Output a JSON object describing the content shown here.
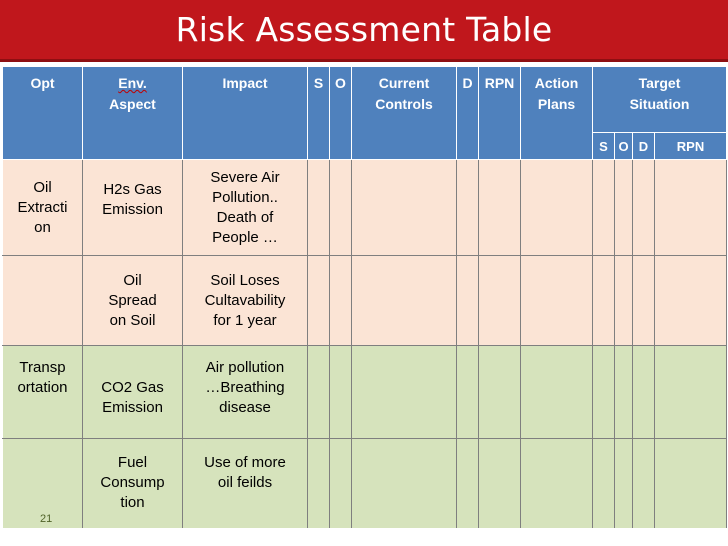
{
  "title": "Risk Assessment Table",
  "headers": {
    "opt": "Opt",
    "env_aspect_1": "Env.",
    "env_aspect_2": "Aspect",
    "impact": "Impact",
    "s": "S",
    "o": "O",
    "current_controls_1": "Current",
    "current_controls_2": "Controls",
    "d": "D",
    "rpn": "RPN",
    "action_plans_1": "Action",
    "action_plans_2": "Plans",
    "target_1": "Target",
    "target_2": "Situation",
    "target_s": "S",
    "target_o": "O",
    "target_d": "D",
    "target_rpn": "RPN"
  },
  "rows": [
    {
      "opt": [
        "Oil",
        "Extracti",
        "on"
      ],
      "aspect": [
        "H2s Gas",
        "Emission"
      ],
      "impact": [
        "Severe Air",
        "Pollution..",
        "Death of",
        "People …"
      ]
    },
    {
      "opt": [],
      "aspect": [
        "Oil",
        "Spread",
        "on Soil"
      ],
      "impact": [
        "Soil Loses",
        "Cultavability",
        "for 1 year"
      ]
    },
    {
      "opt": [
        "Transp",
        "ortation"
      ],
      "aspect": [
        "CO2 Gas",
        "Emission"
      ],
      "impact": [
        "Air pollution",
        "…Breathing",
        "disease"
      ]
    },
    {
      "opt": [],
      "aspect": [
        "Fuel",
        "Consump",
        "tion"
      ],
      "impact": [
        "Use of more",
        "oil feilds"
      ]
    }
  ],
  "page_number": "21",
  "colors": {
    "title_bar": "#c0171c",
    "header": "#4f81bd",
    "row_pink": "#fbe4d5",
    "row_green": "#d6e3bc"
  }
}
